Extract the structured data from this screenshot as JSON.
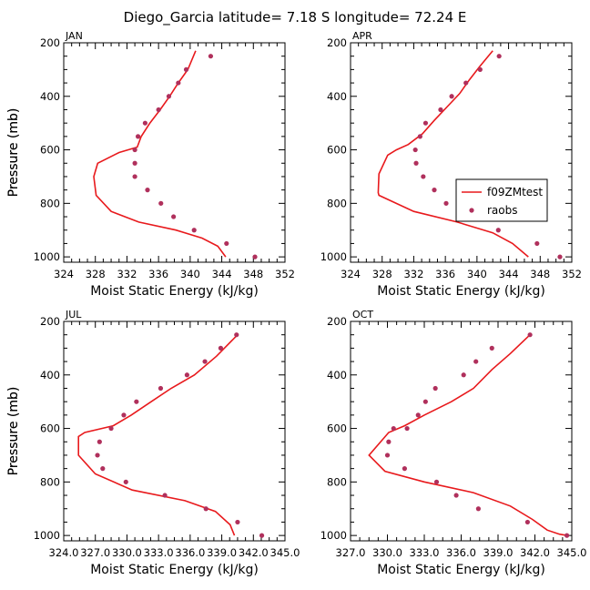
{
  "page_title": "Diego_Garcia   latitude= 7.18 S longitude= 72.24 E",
  "legend": {
    "model_label": "f09ZMtest",
    "obs_label": "raobs"
  },
  "colors": {
    "model": "#e8191c",
    "obs": "#b0305c",
    "axis": "#000000"
  },
  "chart_data": [
    {
      "type": "line",
      "panel": "JAN",
      "title": "JAN",
      "xlabel": "Moist Static Energy (kJ/kg)",
      "ylabel": "Pressure (mb)",
      "xlim": [
        324,
        352
      ],
      "ylim": [
        1020,
        200
      ],
      "xticks": [
        324,
        328,
        332,
        336,
        340,
        344,
        348,
        352
      ],
      "xtick_labels": [
        "324",
        "328",
        "332",
        "336",
        "340",
        "344",
        "348",
        "352"
      ],
      "yticks": [
        200,
        400,
        600,
        800,
        1000
      ],
      "ytick_labels": [
        "200",
        "400",
        "600",
        "800",
        "1000"
      ],
      "legend": false,
      "series": [
        {
          "name": "f09ZMtest",
          "kind": "line",
          "x": [
            340.7,
            339.7,
            338.5,
            337.4,
            336.2,
            334.9,
            333.8,
            333.3,
            331.0,
            328.3,
            327.8,
            328.1,
            330.0,
            333.5,
            338.2,
            341.5,
            343.5,
            344.5
          ],
          "y": [
            230,
            300,
            350,
            400,
            450,
            500,
            550,
            590,
            610,
            650,
            700,
            770,
            830,
            870,
            900,
            930,
            960,
            1000
          ]
        },
        {
          "name": "raobs",
          "kind": "scatter",
          "x": [
            342.6,
            339.5,
            338.5,
            337.3,
            336.0,
            334.3,
            333.4,
            333.0,
            333.0,
            333.0,
            334.6,
            336.3,
            337.9,
            340.5,
            344.6,
            348.2
          ],
          "y": [
            250,
            300,
            350,
            400,
            450,
            500,
            550,
            600,
            650,
            700,
            750,
            800,
            850,
            900,
            950,
            1000
          ]
        }
      ]
    },
    {
      "type": "line",
      "panel": "APR",
      "title": "APR",
      "xlabel": "Moist Static Energy (kJ/kg)",
      "ylabel": "Pressure (mb)",
      "xlim": [
        324,
        352
      ],
      "ylim": [
        1020,
        200
      ],
      "xticks": [
        324,
        328,
        332,
        336,
        340,
        344,
        348,
        352
      ],
      "xtick_labels": [
        "324",
        "328",
        "332",
        "336",
        "340",
        "344",
        "348",
        "352"
      ],
      "yticks": [
        200,
        400,
        600,
        800,
        1000
      ],
      "ytick_labels": [
        "200",
        "400",
        "600",
        "800",
        "1000"
      ],
      "legend": true,
      "legend_position": "right",
      "series": [
        {
          "name": "f09ZMtest",
          "kind": "line",
          "x": [
            342.0,
            340.3,
            339.0,
            337.8,
            336.2,
            334.6,
            333.1,
            331.3,
            329.8,
            328.7,
            327.6,
            327.5,
            327.6,
            332.0,
            337.5,
            342.0,
            344.5,
            346.5
          ],
          "y": [
            230,
            290,
            340,
            390,
            440,
            490,
            540,
            580,
            600,
            620,
            690,
            760,
            770,
            830,
            870,
            910,
            950,
            1000
          ]
        },
        {
          "name": "raobs",
          "kind": "scatter",
          "x": [
            342.8,
            340.4,
            338.6,
            336.8,
            335.4,
            333.5,
            332.8,
            332.2,
            332.3,
            333.2,
            334.6,
            336.1,
            337.6,
            342.7,
            347.6,
            350.5
          ],
          "y": [
            250,
            300,
            350,
            400,
            450,
            500,
            550,
            600,
            650,
            700,
            750,
            800,
            850,
            900,
            950,
            1000
          ]
        }
      ]
    },
    {
      "type": "line",
      "panel": "JUL",
      "title": "JUL",
      "xlabel": "Moist Static Energy (kJ/kg)",
      "ylabel": "Pressure (mb)",
      "xlim": [
        324,
        345
      ],
      "ylim": [
        1020,
        200
      ],
      "xticks": [
        324,
        327,
        330,
        333,
        336,
        339,
        342,
        345
      ],
      "xtick_labels": [
        "324.0",
        "327.0",
        "330.0",
        "333.0",
        "336.0",
        "339.0",
        "342.0",
        "345.0"
      ],
      "yticks": [
        200,
        400,
        600,
        800,
        1000
      ],
      "ytick_labels": [
        "200",
        "400",
        "600",
        "800",
        "1000"
      ],
      "legend": false,
      "series": [
        {
          "name": "f09ZMtest",
          "kind": "line",
          "x": [
            340.5,
            338.5,
            336.4,
            334.2,
            332.3,
            330.4,
            328.7,
            326.0,
            325.4,
            325.4,
            327.0,
            330.5,
            335.5,
            338.4,
            339.8,
            340.2
          ],
          "y": [
            250,
            330,
            400,
            450,
            500,
            550,
            590,
            615,
            630,
            700,
            770,
            830,
            870,
            910,
            960,
            1000
          ]
        },
        {
          "name": "raobs",
          "kind": "scatter",
          "x": [
            340.4,
            338.9,
            337.4,
            335.7,
            333.2,
            330.9,
            329.7,
            328.5,
            327.4,
            327.2,
            327.7,
            329.9,
            333.6,
            337.5,
            340.5,
            342.8
          ],
          "y": [
            250,
            300,
            350,
            400,
            450,
            500,
            550,
            600,
            650,
            700,
            750,
            800,
            850,
            900,
            950,
            1000
          ]
        }
      ]
    },
    {
      "type": "line",
      "panel": "OCT",
      "title": "OCT",
      "xlabel": "Moist Static Energy (kJ/kg)",
      "ylabel": "Pressure (mb)",
      "xlim": [
        327,
        345
      ],
      "ylim": [
        1020,
        200
      ],
      "xticks": [
        327,
        330,
        333,
        336,
        339,
        342,
        345
      ],
      "xtick_labels": [
        "327.0",
        "330.0",
        "333.0",
        "336.0",
        "339.0",
        "342.0",
        "345.0"
      ],
      "yticks": [
        200,
        400,
        600,
        800,
        1000
      ],
      "ytick_labels": [
        "200",
        "400",
        "600",
        "800",
        "1000"
      ],
      "legend": false,
      "series": [
        {
          "name": "f09ZMtest",
          "kind": "line",
          "x": [
            341.6,
            340.0,
            338.5,
            337.0,
            335.2,
            333.0,
            331.4,
            330.1,
            328.5,
            329.8,
            333.0,
            337.0,
            340.0,
            341.8,
            343.0,
            344.0,
            344.6
          ],
          "y": [
            250,
            320,
            380,
            450,
            500,
            550,
            590,
            615,
            700,
            760,
            800,
            840,
            890,
            940,
            980,
            995,
            1000
          ]
        },
        {
          "name": "raobs",
          "kind": "scatter",
          "x": [
            341.6,
            338.5,
            337.2,
            336.2,
            333.9,
            333.1,
            332.5,
            331.6,
            330.5,
            330.1,
            330.0,
            331.4,
            334.0,
            335.6,
            337.4,
            341.4,
            344.6
          ],
          "y": [
            250,
            300,
            350,
            400,
            450,
            500,
            550,
            600,
            600,
            650,
            700,
            750,
            800,
            850,
            900,
            950,
            1000
          ]
        }
      ]
    }
  ]
}
